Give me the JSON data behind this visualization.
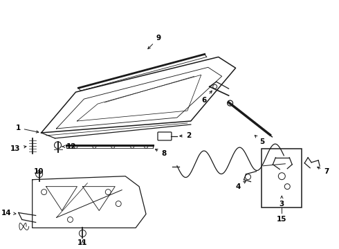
{
  "bg_color": "#ffffff",
  "line_color": "#1a1a1a",
  "text_color": "#000000",
  "figsize": [
    4.9,
    3.6
  ],
  "dpi": 100
}
